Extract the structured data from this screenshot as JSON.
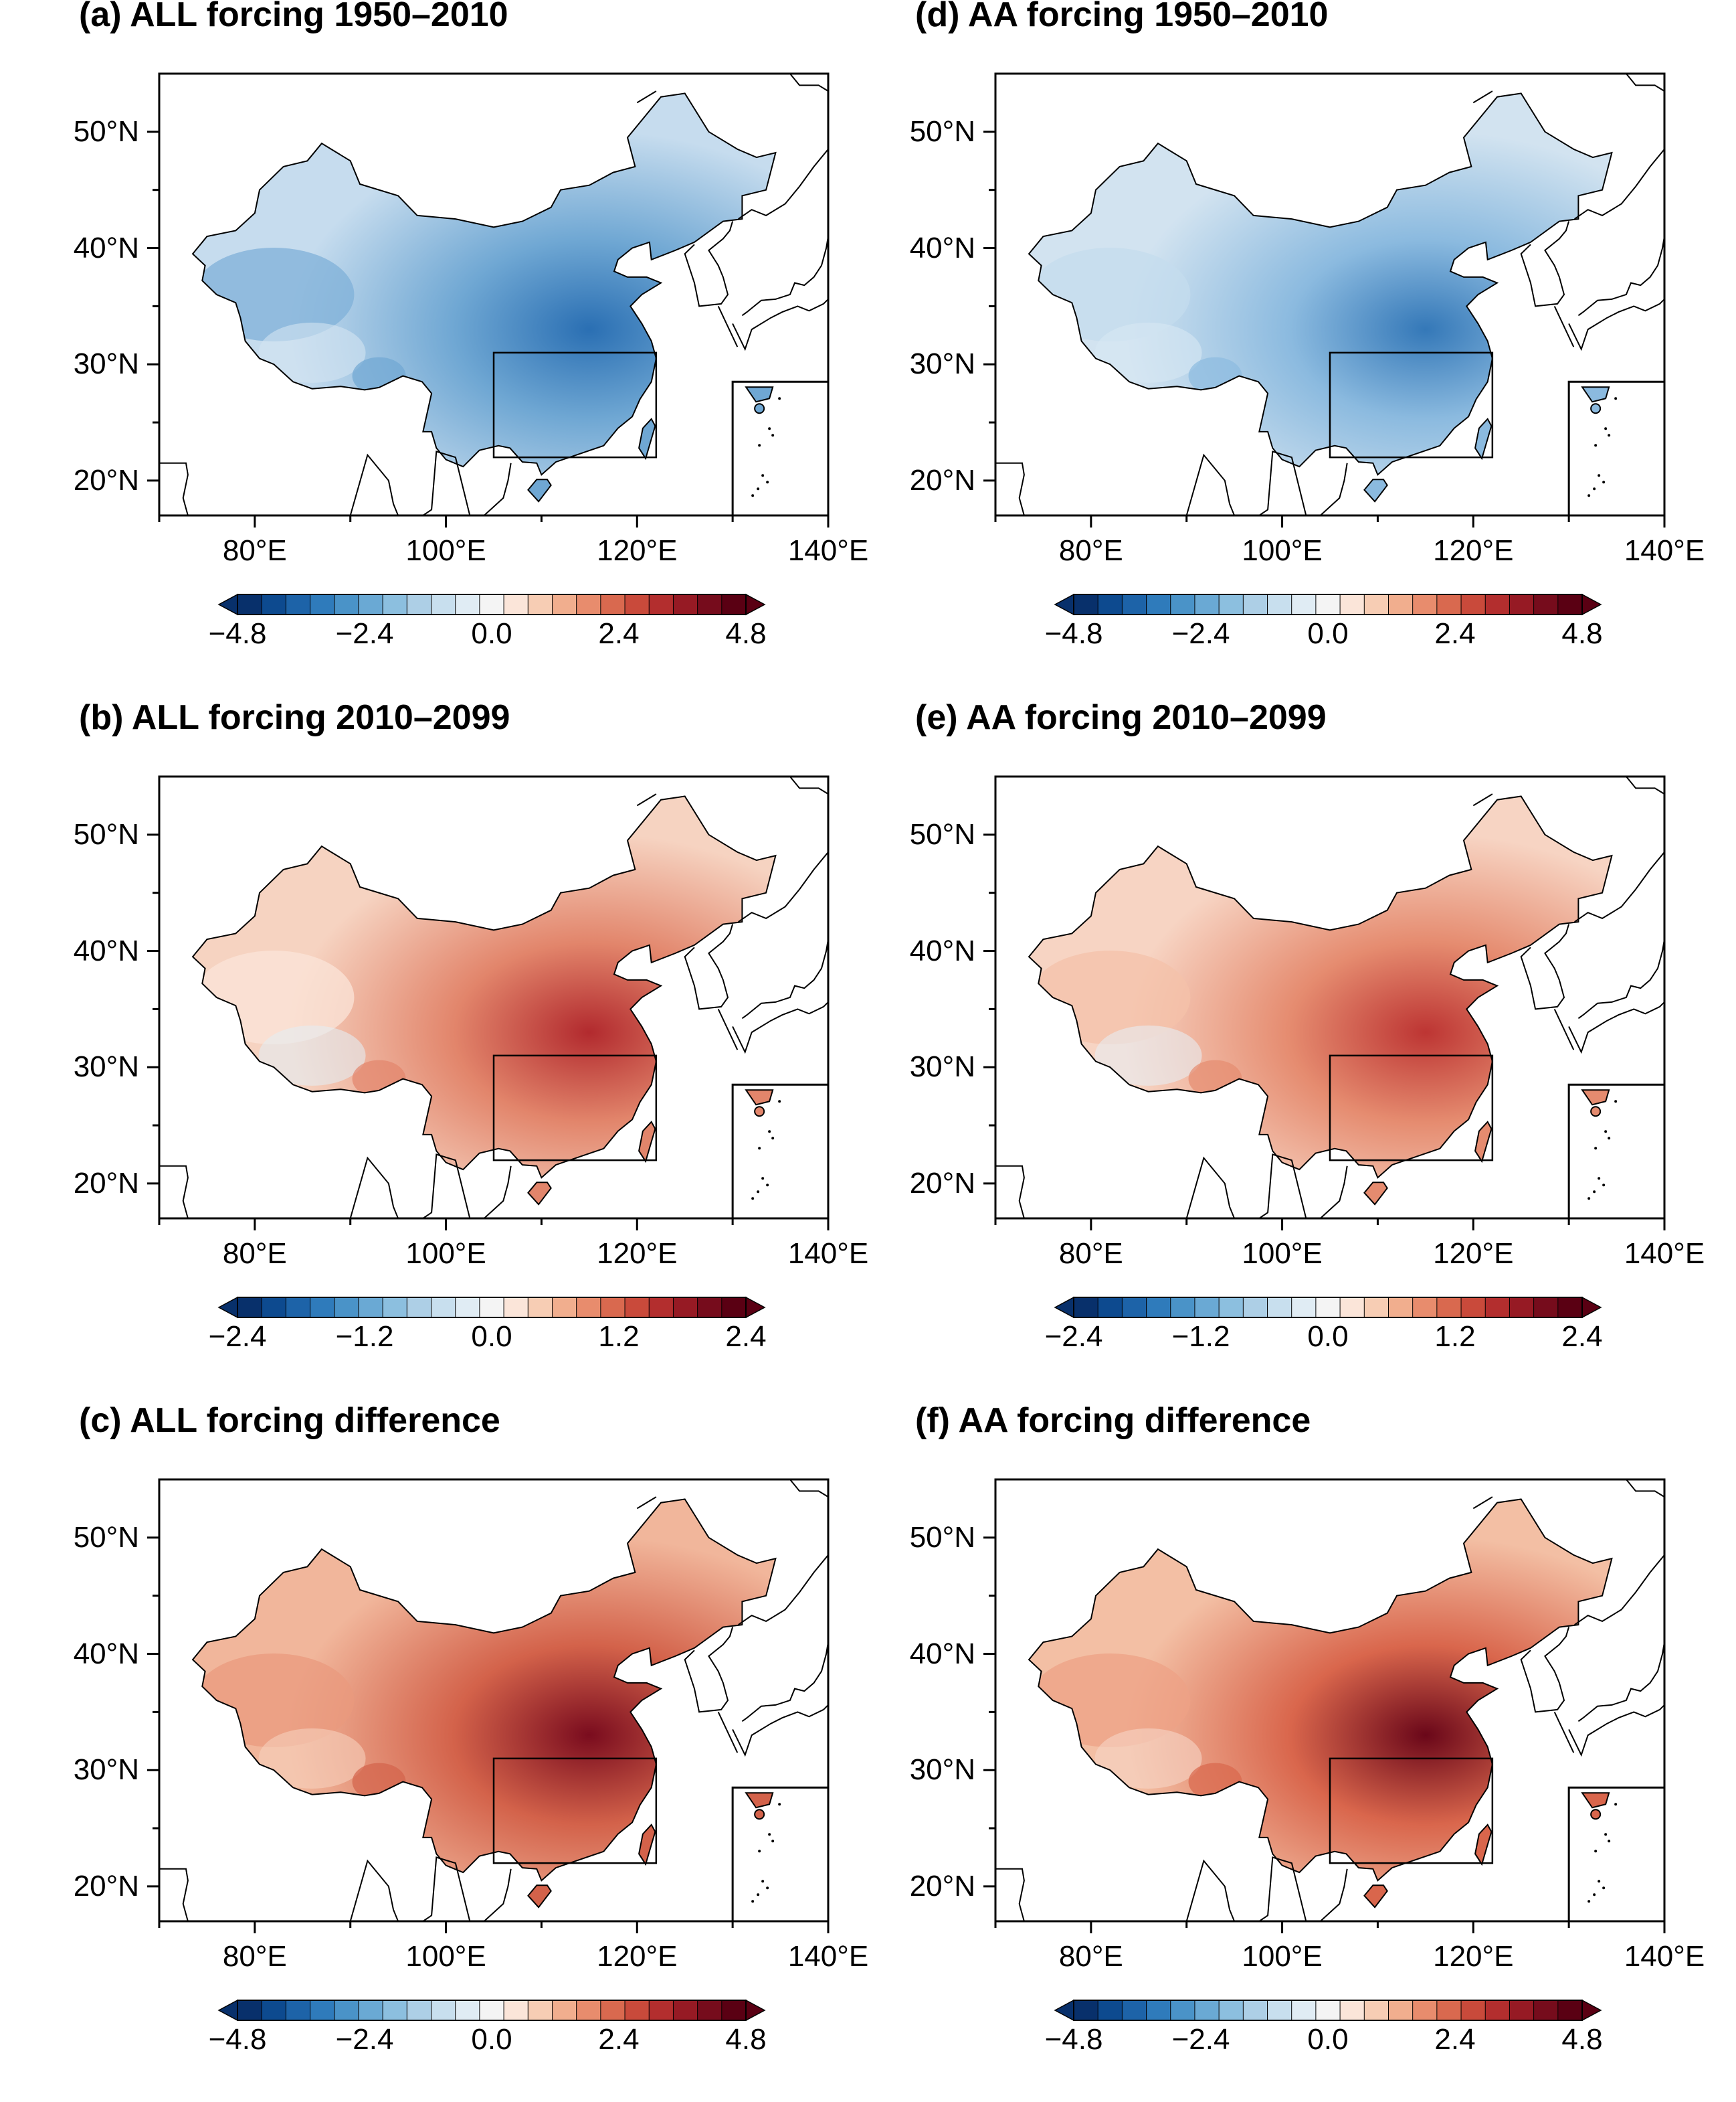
{
  "panels": [
    {
      "id": "a",
      "title": "(a) ALL forcing 1950–2010",
      "scale": "blue",
      "cbar_labels": [
        "−4.8",
        "−2.4",
        "0.0",
        "2.4",
        "4.8"
      ],
      "cbar_values": [
        -4.8,
        -2.4,
        0.0,
        2.4,
        4.8
      ]
    },
    {
      "id": "d",
      "title": "(d) AA forcing 1950–2010",
      "scale": "blue2",
      "cbar_labels": [
        "−4.8",
        "−2.4",
        "0.0",
        "2.4",
        "4.8"
      ],
      "cbar_values": [
        -4.8,
        -2.4,
        0.0,
        2.4,
        4.8
      ]
    },
    {
      "id": "b",
      "title": "(b) ALL forcing 2010–2099",
      "scale": "red",
      "cbar_labels": [
        "−2.4",
        "−1.2",
        "0.0",
        "1.2",
        "2.4"
      ],
      "cbar_values": [
        -2.4,
        -1.2,
        0.0,
        1.2,
        2.4
      ]
    },
    {
      "id": "e",
      "title": "(e) AA forcing 2010–2099",
      "scale": "red2",
      "cbar_labels": [
        "−2.4",
        "−1.2",
        "0.0",
        "1.2",
        "2.4"
      ],
      "cbar_values": [
        -2.4,
        -1.2,
        0.0,
        1.2,
        2.4
      ]
    },
    {
      "id": "c",
      "title": "(c) ALL forcing difference",
      "scale": "dred",
      "cbar_labels": [
        "−4.8",
        "−2.4",
        "0.0",
        "2.4",
        "4.8"
      ],
      "cbar_values": [
        -4.8,
        -2.4,
        0.0,
        2.4,
        4.8
      ]
    },
    {
      "id": "f",
      "title": "(f) AA forcing difference",
      "scale": "dred2",
      "cbar_labels": [
        "−4.8",
        "−2.4",
        "0.0",
        "2.4",
        "4.8"
      ],
      "cbar_values": [
        -4.8,
        -2.4,
        0.0,
        2.4,
        4.8
      ]
    }
  ],
  "axes": {
    "lat_labels": [
      "50°N",
      "40°N",
      "30°N",
      "20°N"
    ],
    "lat_values": [
      50,
      40,
      30,
      20
    ],
    "lon_labels": [
      "80°E",
      "100°E",
      "120°E",
      "140°E"
    ],
    "lon_values": [
      80,
      100,
      120,
      140
    ],
    "lon_range": [
      70,
      140
    ],
    "lat_range": [
      17,
      55
    ]
  },
  "colors": {
    "colorbar": [
      "#08306b",
      "#0d4a8f",
      "#1d63a8",
      "#2f7bbb",
      "#4a93c8",
      "#6aa9d4",
      "#8cbfdf",
      "#adcfe6",
      "#c8dfee",
      "#e0ecf4",
      "#f4f4f4",
      "#fbe5d9",
      "#f7cdb4",
      "#f1ae8e",
      "#e88c6d",
      "#d9694f",
      "#c94a3b",
      "#b32e2e",
      "#961a24",
      "#760c1c",
      "#5a0013"
    ]
  }
}
